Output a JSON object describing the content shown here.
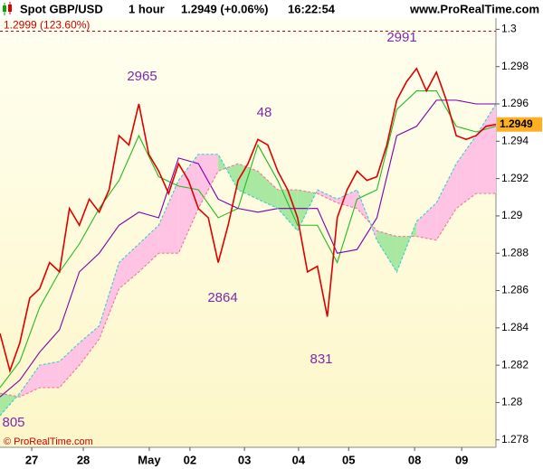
{
  "header": {
    "title": "Spot GBP/USD",
    "interval": "1 hour",
    "quote": "1.2949 (+0.06%)",
    "time": "16:22:54",
    "source": "www.ProRealTime.com"
  },
  "footer": "© ProRealTime.com",
  "chart_data": {
    "type": "line",
    "xlim": [
      0,
      100
    ],
    "ylim": [
      1.2776,
      1.3006
    ],
    "yticks": [
      1.3,
      1.298,
      1.296,
      1.294,
      1.292,
      1.29,
      1.288,
      1.286,
      1.284,
      1.282,
      1.28,
      1.278
    ],
    "xticks": [
      {
        "value": 6.4,
        "label": "27"
      },
      {
        "value": 16.8,
        "label": "28"
      },
      {
        "value": 30.1,
        "label": "May"
      },
      {
        "value": 38.3,
        "label": "02"
      },
      {
        "value": 49.3,
        "label": "03"
      },
      {
        "value": 60.2,
        "label": "04"
      },
      {
        "value": 70.3,
        "label": "05"
      },
      {
        "value": 83.6,
        "label": "08"
      },
      {
        "value": 93.1,
        "label": "09"
      }
    ],
    "series": [
      {
        "color": "#dd0000",
        "x": [
          0,
          2,
          4,
          6,
          8,
          10,
          12,
          14,
          16,
          18,
          20,
          22,
          24,
          26,
          28,
          30,
          32,
          34,
          36,
          38,
          40,
          42,
          44,
          46,
          48,
          50,
          52,
          54,
          56,
          58,
          60,
          62,
          64,
          66,
          68,
          70,
          72,
          74,
          76,
          78,
          80,
          82,
          84,
          86,
          88,
          90,
          92,
          94,
          96,
          98,
          100
        ],
        "values": [
          1.2837,
          1.2817,
          1.2832,
          1.2856,
          1.2861,
          1.2875,
          1.287,
          1.2904,
          1.2895,
          1.2909,
          1.2902,
          1.2914,
          1.2943,
          1.2938,
          1.296,
          1.2933,
          1.2924,
          1.2912,
          1.2928,
          1.2919,
          1.2904,
          1.2899,
          1.2875,
          1.2895,
          1.2919,
          1.2928,
          1.2941,
          1.2938,
          1.2924,
          1.2914,
          1.2899,
          1.287,
          1.2873,
          1.2846,
          1.2899,
          1.2914,
          1.2924,
          1.2919,
          1.2921,
          1.2938,
          1.2962,
          1.2972,
          1.2979,
          1.2967,
          1.2977,
          1.2962,
          1.2943,
          1.2941,
          1.2943,
          1.2948,
          1.2949
        ]
      },
      {
        "color": "#22bb22",
        "x": [
          0,
          4,
          8,
          12,
          16,
          20,
          24,
          28,
          32,
          36,
          40,
          44,
          48,
          52,
          56,
          60,
          64,
          68,
          72,
          76,
          80,
          84,
          88,
          92,
          96,
          100
        ],
        "values": [
          1.2808,
          1.2822,
          1.2851,
          1.287,
          1.2885,
          1.2904,
          1.2919,
          1.2943,
          1.2921,
          1.2916,
          1.2914,
          1.2899,
          1.2904,
          1.2938,
          1.2919,
          1.2895,
          1.2895,
          1.2875,
          1.2909,
          1.2914,
          1.2957,
          1.2967,
          1.2967,
          1.2948,
          1.2945,
          1.2948
        ]
      },
      {
        "color": "#7a00a8",
        "x": [
          0,
          4,
          8,
          12,
          16,
          20,
          24,
          28,
          32,
          36,
          40,
          44,
          48,
          52,
          56,
          60,
          64,
          68,
          72,
          76,
          80,
          84,
          88,
          92,
          96,
          100
        ],
        "values": [
          1.2803,
          1.2812,
          1.2827,
          1.2839,
          1.287,
          1.288,
          1.2895,
          1.2902,
          1.2899,
          1.2931,
          1.2928,
          1.2909,
          1.2904,
          1.2902,
          1.2904,
          1.2904,
          1.2904,
          1.288,
          1.2882,
          1.2899,
          1.2943,
          1.2948,
          1.2962,
          1.2962,
          1.296,
          1.296
        ]
      },
      {
        "color": "#ee7799",
        "dashed": true,
        "x": [
          0,
          4,
          8,
          12,
          16,
          20,
          24,
          28,
          32,
          36,
          40,
          44,
          48,
          52,
          56,
          60,
          64,
          68,
          72,
          76,
          80,
          84,
          88,
          92,
          96,
          100
        ],
        "values": [
          1.2805,
          1.2803,
          1.2808,
          1.2808,
          1.282,
          1.2834,
          1.2861,
          1.287,
          1.288,
          1.288,
          1.2904,
          1.2924,
          1.2928,
          1.2924,
          1.2914,
          1.2914,
          1.2912,
          1.2907,
          1.2904,
          1.2892,
          1.2889,
          1.2889,
          1.2887,
          1.2904,
          1.2912,
          1.2912
        ]
      },
      {
        "color": "#33cccc",
        "dashed": true,
        "x": [
          0,
          4,
          8,
          12,
          16,
          20,
          24,
          28,
          32,
          36,
          40,
          44,
          48,
          52,
          56,
          60,
          64,
          68,
          72,
          76,
          80,
          84,
          88,
          92,
          96,
          100
        ],
        "values": [
          1.2793,
          1.2805,
          1.282,
          1.2822,
          1.2832,
          1.2841,
          1.2875,
          1.2885,
          1.2895,
          1.2919,
          1.2933,
          1.2933,
          1.2914,
          1.2909,
          1.2904,
          1.2892,
          1.2914,
          1.2909,
          1.2914,
          1.2887,
          1.287,
          1.2897,
          1.2907,
          1.2928,
          1.2943,
          1.296
        ]
      }
    ],
    "cloud": {
      "series": [
        3,
        4
      ],
      "up_color": "#a8e8a0",
      "down_color": "#ffc4e4"
    },
    "level": {
      "value": 1.2999,
      "label": "1.2999 (123.60%)",
      "color": "#cc0000"
    },
    "price_tag_color": "#ffb020",
    "annotations": [
      "2965",
      "48",
      "2864",
      "831",
      "2991",
      "805"
    ]
  }
}
